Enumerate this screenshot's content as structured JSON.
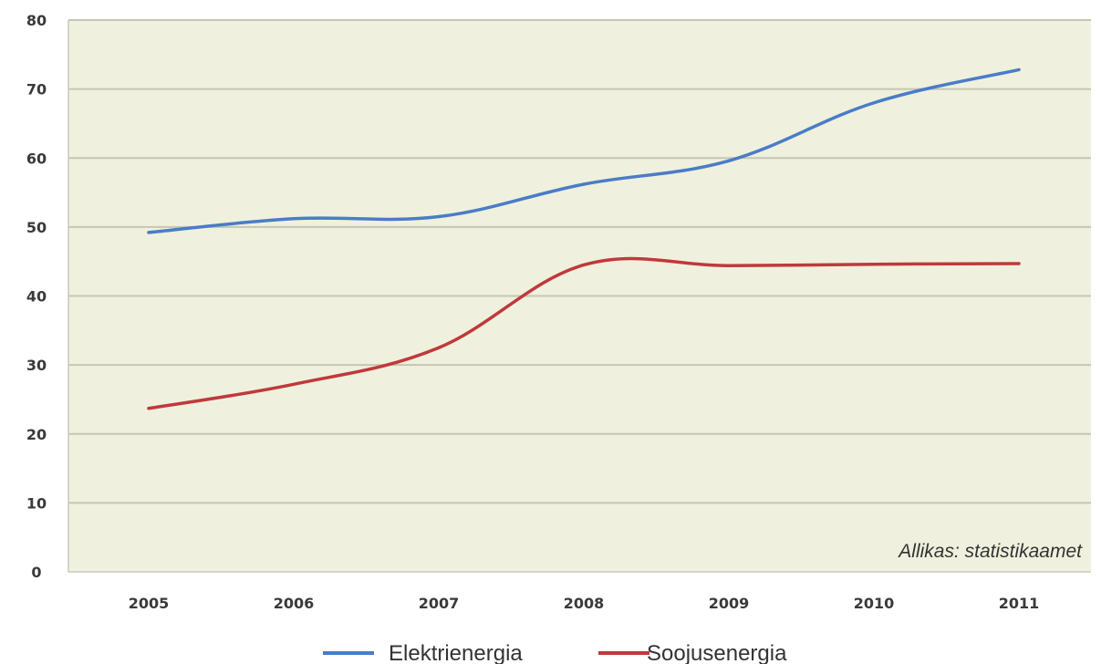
{
  "chart_data": {
    "type": "line",
    "categories": [
      "2005",
      "2006",
      "2007",
      "2008",
      "2009",
      "2010",
      "2011"
    ],
    "series": [
      {
        "name": "Elektrienergia",
        "color": "#4a7cc7",
        "values": [
          49.2,
          51.2,
          51.5,
          56.2,
          59.6,
          68.0,
          72.8
        ]
      },
      {
        "name": "Soojusenergia",
        "color": "#c0393b",
        "values": [
          23.7,
          27.2,
          32.5,
          44.5,
          44.4,
          44.6,
          44.7
        ]
      }
    ],
    "yticks": [
      "0",
      "10",
      "20",
      "30",
      "40",
      "50",
      "60",
      "70",
      "80"
    ],
    "ylim": [
      0,
      80
    ],
    "grid": true,
    "legend_position": "bottom",
    "plot_background": "#eff1de",
    "annotation": "Allikas: statistikaamet"
  }
}
